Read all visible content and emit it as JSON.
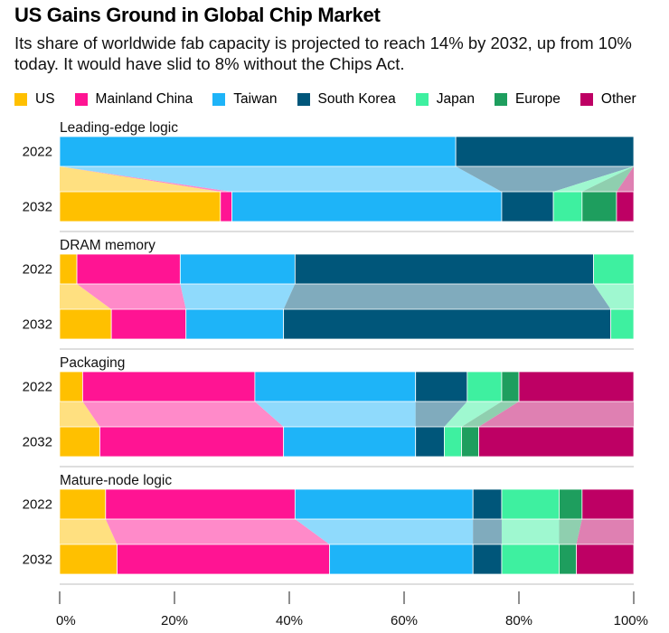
{
  "title": "US Gains Ground in Global Chip Market",
  "subtitle": "Its share of worldwide fab capacity is projected to reach 14% by 2032, up from 10% today. It would have slid to 8% without the Chips Act.",
  "colors": {
    "US": "#FFC000",
    "Mainland China": "#FF1493",
    "Taiwan": "#1EB4F8",
    "South Korea": "#00567A",
    "Japan": "#3EF0A0",
    "Europe": "#1E9E5E",
    "Other": "#BE0064"
  },
  "chart_data": {
    "type": "stacked-bar",
    "orientation": "horizontal",
    "unit": "%",
    "categories": [
      "US",
      "Mainland China",
      "Taiwan",
      "South Korea",
      "Japan",
      "Europe",
      "Other"
    ],
    "x_ticks": [
      "0%",
      "20%",
      "40%",
      "60%",
      "80%",
      "100%"
    ],
    "xlim": [
      0,
      100
    ],
    "panels": [
      {
        "label": "Leading-edge logic",
        "rows": [
          {
            "year": "2022",
            "values": [
              0,
              0,
              69,
              31,
              0,
              0,
              0
            ]
          },
          {
            "year": "2032",
            "values": [
              28,
              2,
              47,
              9,
              5,
              6,
              3
            ]
          }
        ]
      },
      {
        "label": "DRAM memory",
        "rows": [
          {
            "year": "2022",
            "values": [
              3,
              18,
              20,
              52,
              7,
              0,
              0
            ]
          },
          {
            "year": "2032",
            "values": [
              9,
              13,
              17,
              57,
              4,
              0,
              0
            ]
          }
        ]
      },
      {
        "label": "Packaging",
        "rows": [
          {
            "year": "2022",
            "values": [
              4,
              30,
              28,
              9,
              6,
              3,
              20
            ]
          },
          {
            "year": "2032",
            "values": [
              7,
              32,
              23,
              5,
              3,
              3,
              27
            ]
          }
        ]
      },
      {
        "label": "Mature-node logic",
        "rows": [
          {
            "year": "2022",
            "values": [
              8,
              33,
              31,
              5,
              10,
              4,
              9
            ]
          },
          {
            "year": "2032",
            "values": [
              10,
              37,
              25,
              5,
              10,
              3,
              10
            ]
          }
        ]
      }
    ]
  }
}
